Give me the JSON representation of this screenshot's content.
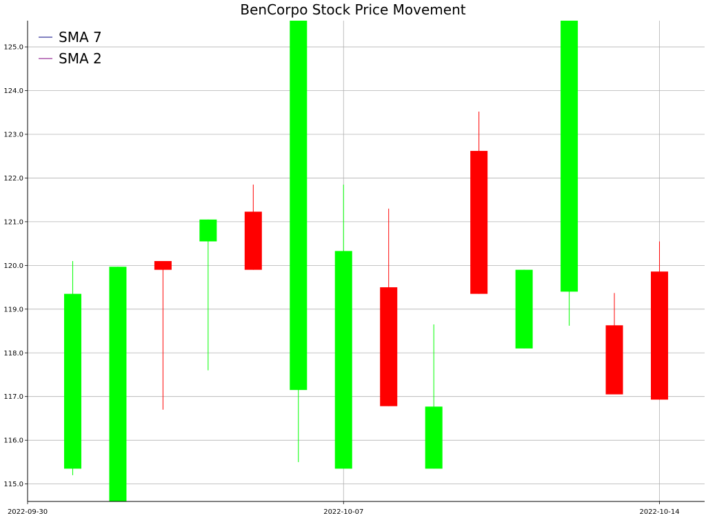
{
  "chart_data": {
    "type": "candlestick",
    "title": "BenCorpo Stock Price Movement",
    "xlabel": "",
    "ylabel": "",
    "x_ticks": [
      "2022-09-30",
      "2022-10-07",
      "2022-10-14"
    ],
    "y_ticks": [
      115.0,
      116.0,
      117.0,
      118.0,
      119.0,
      120.0,
      121.0,
      122.0,
      123.0,
      124.0,
      125.0
    ],
    "ylim": [
      114.6,
      125.6
    ],
    "xlim": [
      "2022-09-30",
      "2022-10-15"
    ],
    "grid": true,
    "legend_position": "top-left",
    "legend": [
      {
        "label": "SMA 7",
        "color": "#000080"
      },
      {
        "label": "SMA 2",
        "color": "#800080"
      }
    ],
    "colors": {
      "up": "#00ff00",
      "down": "#ff0000"
    },
    "candles": [
      {
        "date": "2022-10-01",
        "open": 115.35,
        "high": 120.1,
        "low": 115.2,
        "close": 119.35
      },
      {
        "date": "2022-10-02",
        "open": 114.6,
        "high": 119.97,
        "low": 114.6,
        "close": 119.97
      },
      {
        "date": "2022-10-03",
        "open": 120.1,
        "high": 120.1,
        "low": 116.7,
        "close": 119.9
      },
      {
        "date": "2022-10-04",
        "open": 120.55,
        "high": 121.05,
        "low": 117.6,
        "close": 121.05
      },
      {
        "date": "2022-10-05",
        "open": 121.23,
        "high": 121.85,
        "low": 119.9,
        "close": 119.9
      },
      {
        "date": "2022-10-06",
        "open": 117.15,
        "high": 125.6,
        "low": 115.5,
        "close": 125.6
      },
      {
        "date": "2022-10-07",
        "open": 115.35,
        "high": 121.85,
        "low": 115.35,
        "close": 120.33
      },
      {
        "date": "2022-10-08",
        "open": 119.5,
        "high": 121.3,
        "low": 116.78,
        "close": 116.78
      },
      {
        "date": "2022-10-09",
        "open": 115.35,
        "high": 118.65,
        "low": 115.35,
        "close": 116.77
      },
      {
        "date": "2022-10-10",
        "open": 122.62,
        "high": 123.52,
        "low": 119.35,
        "close": 119.35
      },
      {
        "date": "2022-10-11",
        "open": 118.1,
        "high": 119.9,
        "low": 118.1,
        "close": 119.9
      },
      {
        "date": "2022-10-12",
        "open": 119.4,
        "high": 125.6,
        "low": 118.62,
        "close": 125.6
      },
      {
        "date": "2022-10-13",
        "open": 118.63,
        "high": 119.37,
        "low": 117.05,
        "close": 117.05
      },
      {
        "date": "2022-10-14",
        "open": 119.86,
        "high": 120.55,
        "low": 116.93,
        "close": 116.93
      }
    ]
  }
}
